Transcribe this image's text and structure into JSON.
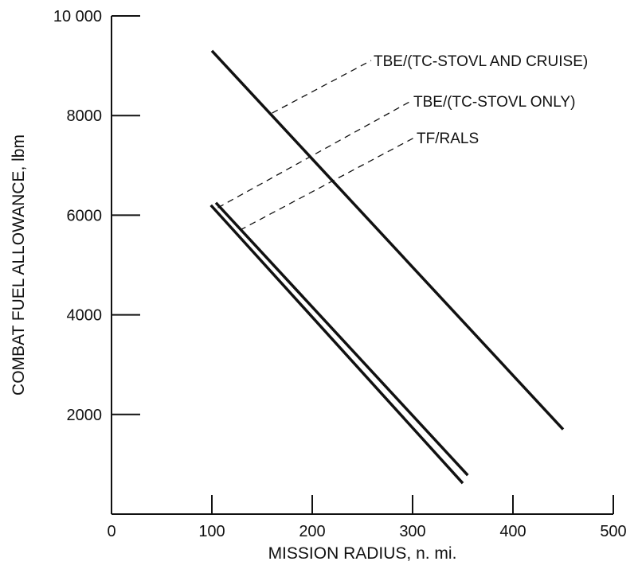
{
  "chart_data": {
    "type": "line",
    "xlabel": "MISSION RADIUS, n. mi.",
    "ylabel": "COMBAT FUEL ALLOWANCE, lbm",
    "xlim": [
      0,
      500
    ],
    "ylim": [
      0,
      10000
    ],
    "x_ticks": [
      0,
      100,
      200,
      300,
      400,
      500
    ],
    "x_tick_labels": [
      "0",
      "100",
      "200",
      "300",
      "400",
      "500"
    ],
    "y_ticks": [
      2000,
      4000,
      6000,
      8000,
      10000
    ],
    "y_tick_labels": [
      "2000",
      "4000",
      "6000",
      "8000",
      "10 000"
    ],
    "grid": false,
    "legend": "none",
    "series": [
      {
        "name": "TBE/(TC-STOVL AND CRUISE)",
        "x": [
          100,
          450
        ],
        "y": [
          9300,
          1700
        ],
        "leader_from": [
          160,
          8050
        ]
      },
      {
        "name": "TBE/(TC-STOVL ONLY)",
        "x": [
          104,
          355
        ],
        "y": [
          6250,
          780
        ],
        "leader_from": [
          106,
          6150
        ]
      },
      {
        "name": "TF/RALS",
        "x": [
          99,
          350
        ],
        "y": [
          6200,
          620
        ],
        "leader_from": [
          128,
          5700
        ]
      }
    ]
  }
}
